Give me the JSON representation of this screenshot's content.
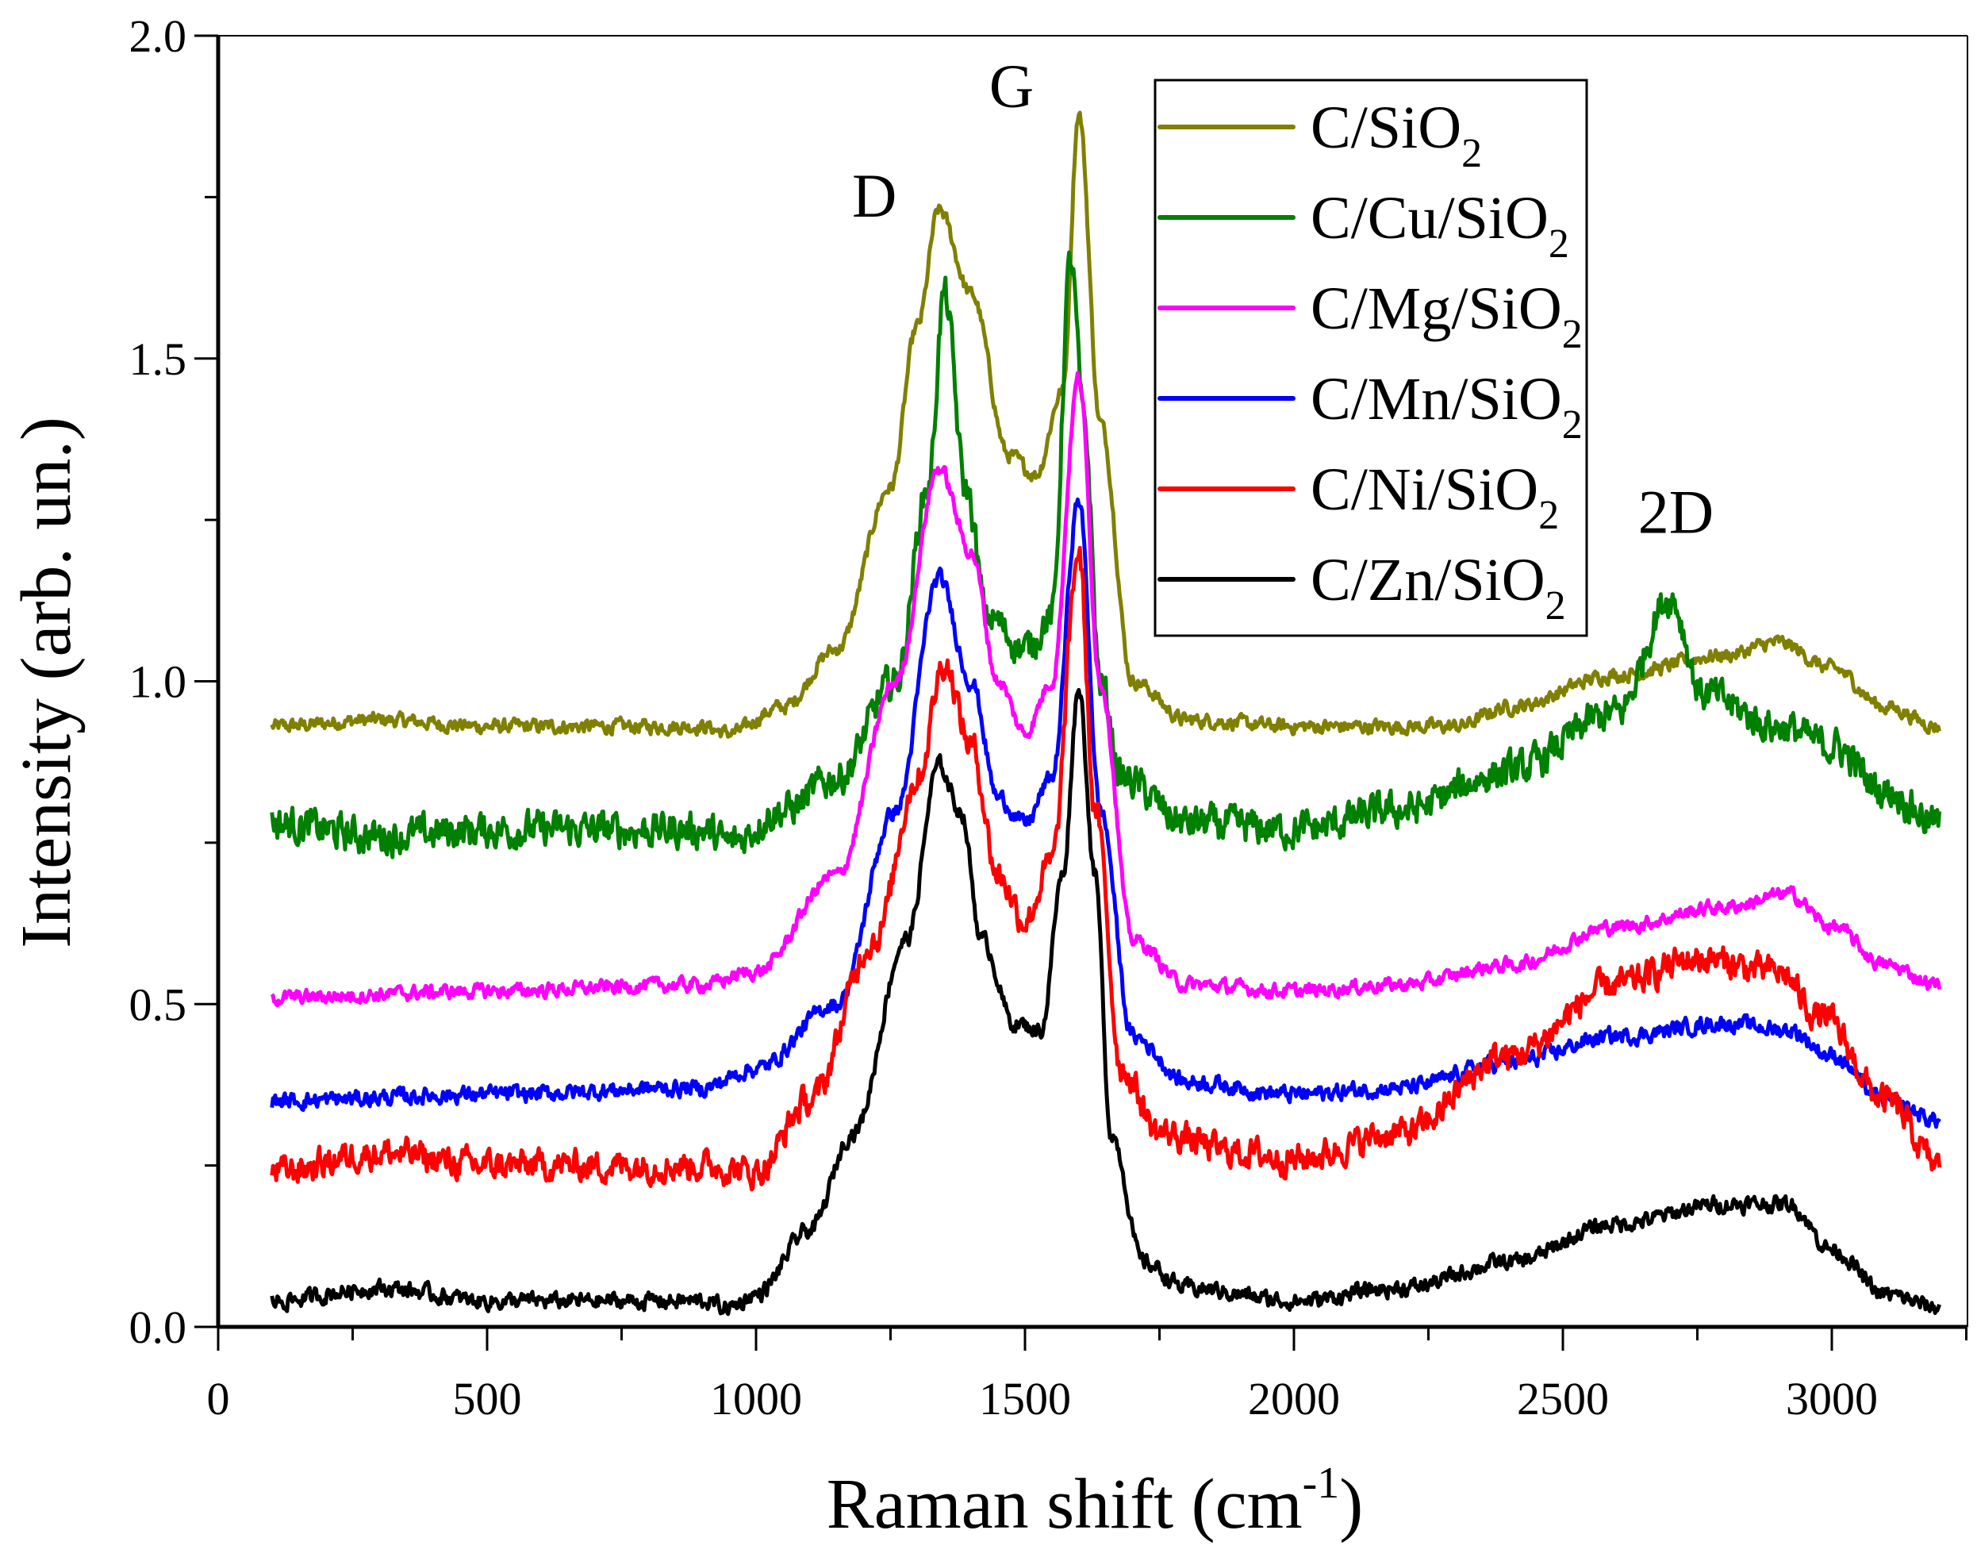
{
  "chart_data": {
    "type": "line",
    "title": "",
    "xlabel": {
      "main": "Raman shift (cm",
      "sup": "-1",
      "end": ")"
    },
    "ylabel": "Intensity (arb. un.)",
    "xlim": [
      0,
      3250
    ],
    "ylim": [
      0,
      2.0
    ],
    "xticks": [
      0,
      500,
      1000,
      1500,
      2000,
      2500,
      3000
    ],
    "xtick_labels": [
      "0",
      "500",
      "1000",
      "1500",
      "2000",
      "2500",
      "3000"
    ],
    "yticks": [
      0,
      0.5,
      1.0,
      1.5,
      2.0
    ],
    "ytick_labels": [
      "0.0",
      "0.5",
      "1.0",
      "1.5",
      "2.0"
    ],
    "grid": false,
    "legend_position": "top-right",
    "annotations": [
      {
        "text": "D",
        "x": 1220,
        "y": 1.72
      },
      {
        "text": "G",
        "x": 1475,
        "y": 1.89
      },
      {
        "text": "2D",
        "x": 2710,
        "y": 1.23
      }
    ],
    "series": [
      {
        "name": "C/SiO2",
        "color": "#808000",
        "noise": 0.014,
        "x": [
          100,
          300,
          500,
          900,
          950,
          1050,
          1150,
          1250,
          1300,
          1340,
          1400,
          1470,
          1520,
          1570,
          1600,
          1640,
          1700,
          1800,
          2000,
          2300,
          2400,
          2600,
          2800,
          2900,
          3000,
          3100,
          3200
        ],
        "y": [
          0.93,
          0.94,
          0.93,
          0.93,
          0.92,
          0.96,
          1.05,
          1.3,
          1.55,
          1.73,
          1.6,
          1.35,
          1.32,
          1.45,
          1.88,
          1.4,
          1.0,
          0.94,
          0.93,
          0.93,
          0.96,
          1.01,
          1.04,
          1.06,
          1.02,
          0.96,
          0.93
        ]
      },
      {
        "name": "C/Cu/SiO2",
        "color": "#008000",
        "noise": 0.035,
        "x": [
          100,
          300,
          500,
          900,
          950,
          1050,
          1150,
          1260,
          1320,
          1350,
          1390,
          1430,
          1500,
          1550,
          1585,
          1610,
          1640,
          1680,
          1800,
          2000,
          2200,
          2400,
          2600,
          2700,
          2760,
          2900,
          3000,
          3100,
          3200
        ],
        "y": [
          0.78,
          0.76,
          0.77,
          0.77,
          0.75,
          0.8,
          0.85,
          1.0,
          1.3,
          1.6,
          1.3,
          1.1,
          1.05,
          1.1,
          1.65,
          1.4,
          1.0,
          0.85,
          0.78,
          0.77,
          0.8,
          0.86,
          0.95,
          1.13,
          0.98,
          0.93,
          0.9,
          0.83,
          0.78
        ]
      },
      {
        "name": "C/Mg/SiO2",
        "color": "#ff00ff",
        "noise": 0.014,
        "x": [
          100,
          500,
          900,
          1000,
          1150,
          1260,
          1340,
          1400,
          1450,
          1500,
          1550,
          1600,
          1640,
          1700,
          1800,
          2000,
          2200,
          2400,
          2600,
          2800,
          2920,
          3000,
          3100,
          3200
        ],
        "y": [
          0.51,
          0.52,
          0.53,
          0.55,
          0.7,
          1.0,
          1.33,
          1.2,
          1.0,
          0.92,
          1.0,
          1.47,
          1.0,
          0.6,
          0.53,
          0.52,
          0.53,
          0.56,
          0.62,
          0.65,
          0.67,
          0.62,
          0.56,
          0.53
        ]
      },
      {
        "name": "C/Mn/SiO2",
        "color": "#0000ff",
        "noise": 0.016,
        "x": [
          100,
          500,
          900,
          1000,
          1150,
          1260,
          1340,
          1400,
          1450,
          1500,
          1550,
          1600,
          1640,
          1700,
          1800,
          2000,
          2200,
          2400,
          2600,
          2800,
          2920,
          3000,
          3100,
          3200
        ],
        "y": [
          0.35,
          0.36,
          0.37,
          0.4,
          0.5,
          0.8,
          1.16,
          1.0,
          0.82,
          0.78,
          0.85,
          1.28,
          0.8,
          0.45,
          0.38,
          0.36,
          0.37,
          0.41,
          0.45,
          0.47,
          0.46,
          0.42,
          0.35,
          0.32
        ]
      },
      {
        "name": "C/Ni/SiO2",
        "color": "#ff0000",
        "noise": 0.03,
        "x": [
          100,
          300,
          500,
          900,
          1000,
          1100,
          1220,
          1300,
          1350,
          1400,
          1450,
          1500,
          1550,
          1600,
          1630,
          1680,
          1750,
          1900,
          2000,
          2200,
          2400,
          2600,
          2750,
          2900,
          2980,
          3100,
          3200
        ],
        "y": [
          0.24,
          0.27,
          0.25,
          0.25,
          0.24,
          0.35,
          0.6,
          0.85,
          1.03,
          0.9,
          0.7,
          0.63,
          0.72,
          1.2,
          0.8,
          0.4,
          0.3,
          0.27,
          0.26,
          0.3,
          0.42,
          0.53,
          0.57,
          0.55,
          0.48,
          0.35,
          0.25
        ]
      },
      {
        "name": "C/Zn/SiO2",
        "color": "#000000",
        "noise": 0.016,
        "x": [
          100,
          300,
          500,
          900,
          950,
          1000,
          1100,
          1180,
          1280,
          1340,
          1380,
          1420,
          1480,
          1530,
          1570,
          1600,
          1630,
          1660,
          1720,
          1800,
          2000,
          2200,
          2400,
          2600,
          2800,
          2920,
          3000,
          3100,
          3200
        ],
        "y": [
          0.04,
          0.06,
          0.04,
          0.04,
          0.03,
          0.05,
          0.15,
          0.3,
          0.6,
          0.87,
          0.8,
          0.6,
          0.47,
          0.46,
          0.7,
          0.99,
          0.7,
          0.3,
          0.1,
          0.06,
          0.04,
          0.06,
          0.1,
          0.16,
          0.19,
          0.19,
          0.12,
          0.05,
          0.03
        ]
      }
    ]
  }
}
